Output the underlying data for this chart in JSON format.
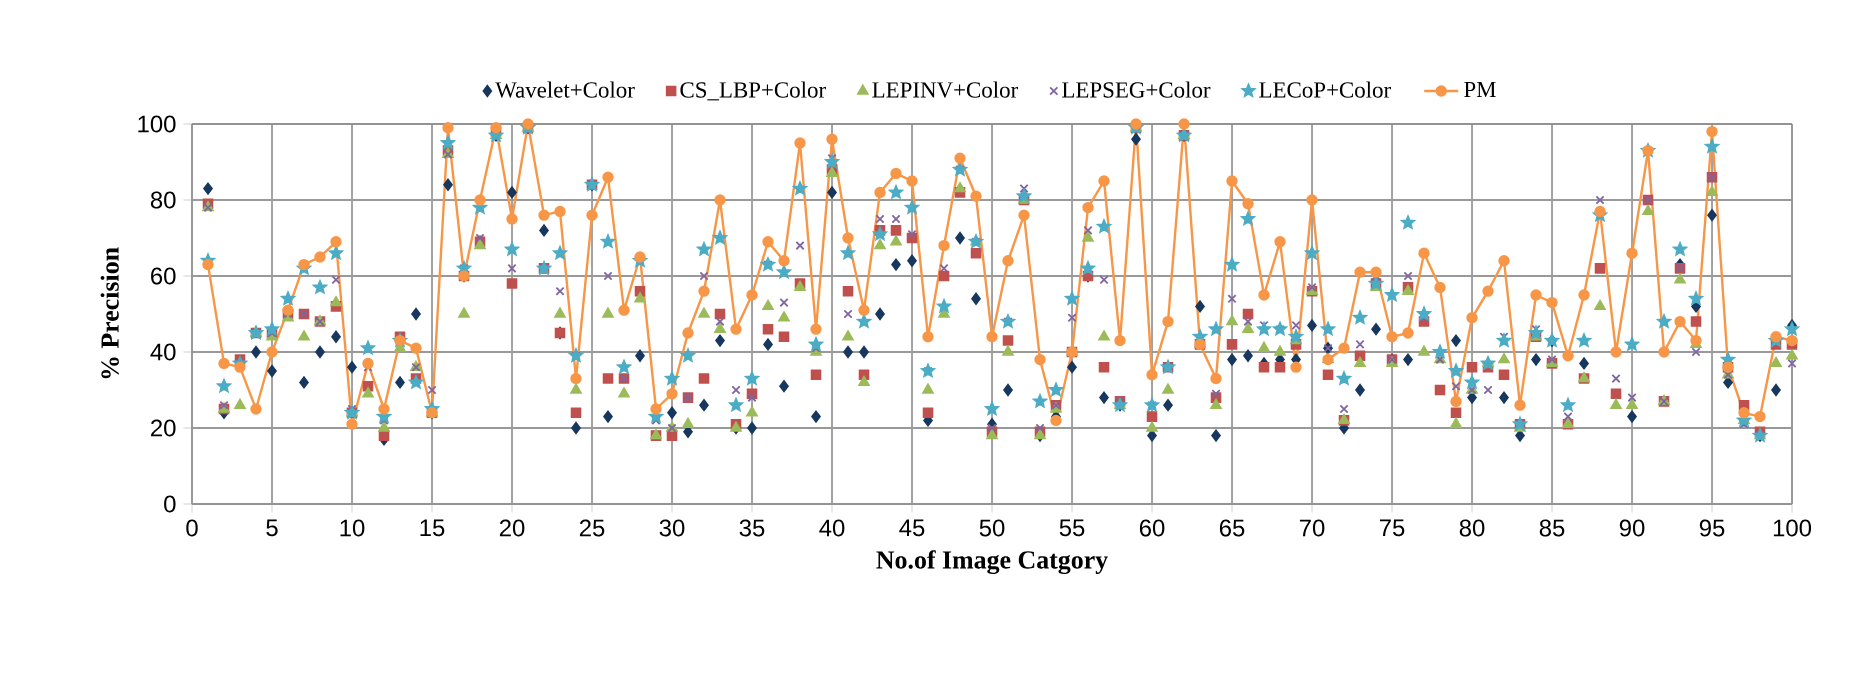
{
  "chart_data": {
    "type": "line",
    "xlabel": "No.of Image Catgory",
    "ylabel": "% Precision",
    "xlim": [
      0,
      100
    ],
    "ylim": [
      0,
      100
    ],
    "xticks": [
      0,
      5,
      10,
      15,
      20,
      25,
      30,
      35,
      40,
      45,
      50,
      55,
      60,
      65,
      70,
      75,
      80,
      85,
      90,
      95,
      100
    ],
    "yticks": [
      0,
      20,
      40,
      60,
      80,
      100
    ],
    "grid": true,
    "legend": "top",
    "x": [
      1,
      2,
      3,
      4,
      5,
      6,
      7,
      8,
      9,
      10,
      11,
      12,
      13,
      14,
      15,
      16,
      17,
      18,
      19,
      20,
      21,
      22,
      23,
      24,
      25,
      26,
      27,
      28,
      29,
      30,
      31,
      32,
      33,
      34,
      35,
      36,
      37,
      38,
      39,
      40,
      41,
      42,
      43,
      44,
      45,
      46,
      47,
      48,
      49,
      50,
      51,
      52,
      53,
      54,
      55,
      56,
      57,
      58,
      59,
      60,
      61,
      62,
      63,
      64,
      65,
      66,
      67,
      68,
      69,
      70,
      71,
      72,
      73,
      74,
      75,
      76,
      77,
      78,
      79,
      80,
      81,
      82,
      83,
      84,
      85,
      86,
      87,
      88,
      89,
      90,
      91,
      92,
      93,
      94,
      95,
      96,
      97,
      98,
      99,
      100
    ],
    "series": [
      {
        "name": "Wavelet+Color",
        "color": "#17375e",
        "type": "scatter",
        "marker": "diamond",
        "values": [
          83,
          24,
          null,
          40,
          35,
          null,
          32,
          40,
          44,
          36,
          null,
          17,
          32,
          50,
          24,
          84,
          60,
          69,
          97,
          82,
          99,
          72,
          45,
          20,
          84,
          23,
          null,
          39,
          null,
          24,
          19,
          26,
          43,
          20,
          20,
          42,
          31,
          null,
          23,
          82,
          40,
          40,
          50,
          63,
          64,
          22,
          null,
          70,
          54,
          21,
          30,
          81,
          18,
          23,
          36,
          60,
          28,
          26,
          96,
          18,
          26,
          97,
          52,
          18,
          38,
          39,
          37,
          38,
          38,
          47,
          41,
          20,
          30,
          46,
          38,
          38,
          null,
          null,
          43,
          28,
          null,
          28,
          18,
          38,
          43,
          null,
          37,
          null,
          null,
          23,
          null,
          null,
          63,
          52,
          76,
          32,
          22,
          18,
          30,
          47
        ]
      },
      {
        "name": "CS_LBP+Color",
        "color": "#c0504d",
        "type": "scatter",
        "marker": "square",
        "values": [
          79,
          25,
          38,
          45,
          45,
          50,
          50,
          48,
          52,
          24,
          31,
          18,
          44,
          33,
          24,
          93,
          60,
          69,
          98,
          58,
          99,
          62,
          45,
          24,
          84,
          33,
          33,
          56,
          18,
          18,
          28,
          33,
          50,
          21,
          29,
          46,
          44,
          58,
          34,
          88,
          56,
          34,
          72,
          72,
          70,
          24,
          60,
          82,
          66,
          19,
          43,
          80,
          19,
          26,
          40,
          60,
          36,
          27,
          99,
          23,
          36,
          97,
          42,
          28,
          42,
          50,
          36,
          36,
          42,
          56,
          34,
          22,
          39,
          58,
          38,
          57,
          48,
          30,
          24,
          36,
          36,
          34,
          21,
          44,
          37,
          21,
          33,
          62,
          29,
          null,
          80,
          27,
          62,
          48,
          86,
          36,
          26,
          19,
          42,
          42
        ]
      },
      {
        "name": "LEPINV+Color",
        "color": "#9bbb59",
        "type": "scatter",
        "marker": "triangle",
        "values": [
          78,
          25,
          26,
          45,
          44,
          49,
          44,
          48,
          53,
          24,
          29,
          20,
          41,
          36,
          24,
          92,
          50,
          68,
          97,
          null,
          99,
          null,
          50,
          30,
          null,
          50,
          29,
          54,
          18,
          20,
          21,
          50,
          46,
          20,
          24,
          52,
          49,
          57,
          40,
          87,
          44,
          32,
          68,
          69,
          null,
          30,
          50,
          83,
          69,
          18,
          40,
          80,
          18,
          25,
          40,
          70,
          44,
          26,
          99,
          20,
          30,
          97,
          42,
          26,
          48,
          46,
          41,
          40,
          43,
          56,
          38,
          22,
          37,
          57,
          37,
          56,
          40,
          38,
          21,
          30,
          37,
          38,
          20,
          44,
          37,
          21,
          33,
          52,
          26,
          26,
          77,
          27,
          59,
          42,
          82,
          34,
          22,
          18,
          37,
          39
        ]
      },
      {
        "name": "LEPSEG+Color",
        "color": "#8064a2",
        "type": "scatter",
        "marker": "cross",
        "values": [
          78,
          26,
          37,
          45,
          45,
          50,
          50,
          48,
          59,
          25,
          36,
          22,
          null,
          36,
          30,
          92,
          62,
          70,
          97,
          62,
          99,
          62,
          56,
          39,
          84,
          60,
          33,
          64,
          22,
          20,
          28,
          60,
          48,
          30,
          28,
          63,
          53,
          68,
          41,
          91,
          50,
          null,
          75,
          75,
          71,
          35,
          62,
          88,
          69,
          20,
          48,
          83,
          20,
          26,
          49,
          72,
          59,
          27,
          null,
          26,
          36,
          97,
          43,
          29,
          54,
          48,
          47,
          46,
          47,
          57,
          41,
          25,
          42,
          60,
          38,
          60,
          49,
          38,
          31,
          30,
          30,
          44,
          21,
          46,
          38,
          23,
          null,
          80,
          33,
          28,
          80,
          27,
          62,
          40,
          86,
          34,
          21,
          18,
          null,
          37
        ]
      },
      {
        "name": "LECoP+Color",
        "color": "#4bacc6",
        "type": "scatter",
        "marker": "star",
        "values": [
          64,
          31,
          37,
          45,
          46,
          54,
          62,
          57,
          66,
          24,
          41,
          23,
          43,
          32,
          25,
          95,
          62,
          78,
          97,
          67,
          99,
          62,
          66,
          39,
          84,
          69,
          36,
          64,
          23,
          33,
          39,
          67,
          70,
          26,
          33,
          63,
          61,
          83,
          42,
          90,
          66,
          48,
          71,
          82,
          78,
          35,
          52,
          88,
          69,
          25,
          48,
          81,
          27,
          30,
          54,
          62,
          73,
          26,
          99,
          26,
          36,
          97,
          44,
          46,
          63,
          75,
          46,
          46,
          44,
          66,
          46,
          33,
          49,
          58,
          55,
          74,
          50,
          40,
          35,
          32,
          37,
          43,
          21,
          45,
          43,
          26,
          43,
          76,
          null,
          42,
          93,
          48,
          67,
          54,
          94,
          38,
          22,
          18,
          43,
          46
        ]
      },
      {
        "name": "PM",
        "color": "#f79646",
        "marker": "circle",
        "values": [
          63,
          37,
          36,
          25,
          40,
          51,
          63,
          65,
          69,
          21,
          37,
          25,
          43,
          41,
          24,
          99,
          60,
          80,
          99,
          75,
          100,
          76,
          77,
          33,
          76,
          86,
          51,
          65,
          25,
          29,
          45,
          56,
          80,
          46,
          55,
          69,
          64,
          95,
          46,
          96,
          70,
          51,
          82,
          87,
          85,
          44,
          68,
          91,
          81,
          44,
          64,
          76,
          38,
          22,
          40,
          78,
          85,
          43,
          100,
          34,
          48,
          100,
          42,
          33,
          85,
          79,
          55,
          69,
          36,
          80,
          38,
          41,
          61,
          61,
          44,
          45,
          66,
          57,
          27,
          49,
          56,
          64,
          26,
          55,
          53,
          39,
          55,
          77,
          40,
          66,
          93,
          40,
          48,
          43,
          98,
          36,
          24,
          23,
          44,
          43
        ]
      }
    ]
  }
}
